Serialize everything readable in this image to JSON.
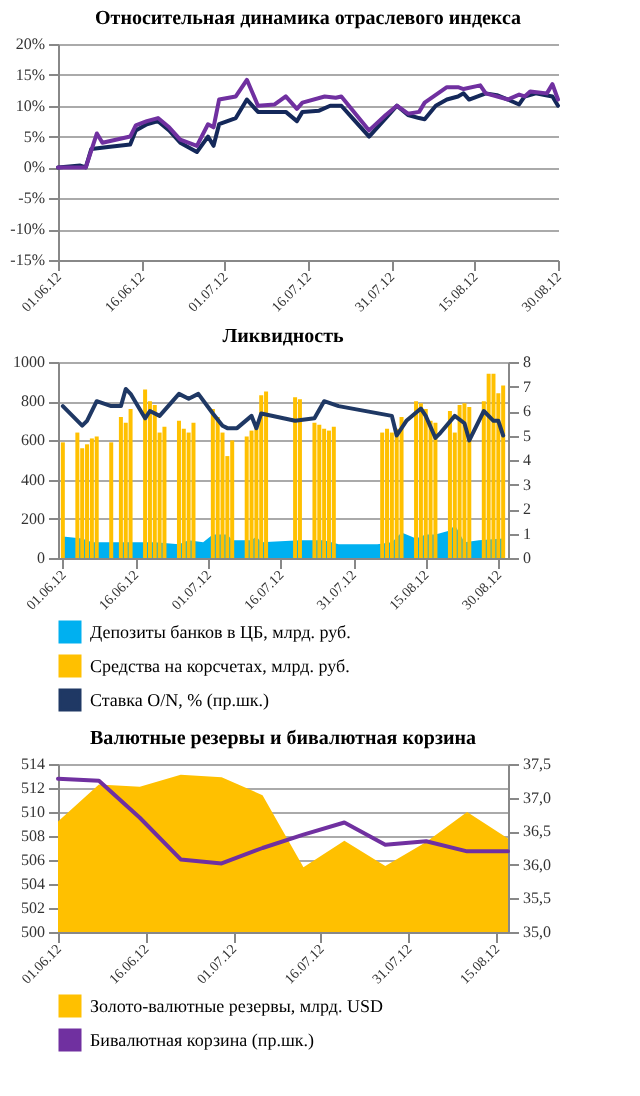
{
  "chart_data": [
    {
      "type": "line",
      "title": "Относительная динамика отраслевого индекса",
      "xlim": [
        "--06-01",
        "--08-30"
      ],
      "xticks": [
        {
          "value": "--06-01",
          "label": "01.06.12"
        },
        {
          "value": "--06-16",
          "label": "16.06.12"
        },
        {
          "value": "--07-01",
          "label": "01.07.12"
        },
        {
          "value": "--07-16",
          "label": "16.07.12"
        },
        {
          "value": "--07-31",
          "label": "31.07.12"
        },
        {
          "value": "--08-15",
          "label": "15.08.12"
        },
        {
          "value": "--08-30",
          "label": "30.08.12"
        }
      ],
      "ylim": [
        -15,
        20
      ],
      "yticks": [
        {
          "value": -15,
          "label": "-15%"
        },
        {
          "value": -10,
          "label": "-10%"
        },
        {
          "value": -5,
          "label": "-5%"
        },
        {
          "value": 0,
          "label": "0%"
        },
        {
          "value": 5,
          "label": "5%"
        },
        {
          "value": 10,
          "label": "10%"
        },
        {
          "value": 15,
          "label": "15%"
        },
        {
          "value": 20,
          "label": "20%"
        }
      ],
      "grid": "y",
      "series": [
        {
          "color": "#14285a",
          "x": [
            "--06-01",
            "--06-05",
            "--06-06",
            "--06-07",
            "--06-10",
            "--06-14",
            "--06-15",
            "--06-17",
            "--06-19",
            "--06-21",
            "--06-23",
            "--06-26",
            "--06-28",
            "--06-29",
            "--06-30",
            "--07-03",
            "--07-05",
            "--07-07",
            "--07-10",
            "--07-12",
            "--07-14",
            "--07-15",
            "--07-18",
            "--07-20",
            "--07-22",
            "--07-24",
            "--07-27",
            "--07-30",
            "--08-01",
            "--08-03",
            "--08-05",
            "--08-06",
            "--08-08",
            "--08-10",
            "--08-12",
            "--08-13",
            "--08-14",
            "--08-17",
            "--08-19",
            "--08-21",
            "--08-23",
            "--08-24",
            "--08-26",
            "--08-29",
            "--08-30"
          ],
          "values": [
            0,
            0.3,
            0,
            3,
            3.3,
            3.7,
            6,
            7,
            7.5,
            6,
            4,
            2.5,
            5,
            3.5,
            7,
            8,
            11,
            9,
            9,
            9,
            7.5,
            9,
            9.2,
            10,
            10,
            8,
            5,
            8,
            10,
            8.5,
            8,
            7.8,
            10,
            11,
            11.5,
            12,
            11,
            12,
            11.7,
            11,
            10.2,
            11.5,
            12,
            11.5,
            10
          ]
        },
        {
          "color": "#7030a0",
          "x": [
            "--06-01",
            "--06-06",
            "--06-08",
            "--06-09",
            "--06-14",
            "--06-15",
            "--06-17",
            "--06-19",
            "--06-21",
            "--06-23",
            "--06-26",
            "--06-28",
            "--06-29",
            "--06-30",
            "--07-03",
            "--07-05",
            "--07-07",
            "--07-10",
            "--07-12",
            "--07-14",
            "--07-15",
            "--07-19",
            "--07-21",
            "--07-22",
            "--07-27",
            "--07-30",
            "--08-01",
            "--08-03",
            "--08-05",
            "--08-06",
            "--08-10",
            "--08-12",
            "--08-13",
            "--08-16",
            "--08-17",
            "--08-21",
            "--08-23",
            "--08-24",
            "--08-25",
            "--08-28",
            "--08-29",
            "--08-30"
          ],
          "values": [
            0,
            0,
            5.5,
            4,
            5,
            6.8,
            7.5,
            8,
            6.5,
            4.5,
            3.5,
            7,
            6.5,
            11,
            11.5,
            14.2,
            10,
            10.2,
            11.5,
            9.5,
            10.5,
            11.5,
            11.3,
            11.5,
            6,
            8.5,
            10,
            8.7,
            9,
            10.5,
            13,
            13,
            12.7,
            13.3,
            12,
            11,
            11.8,
            11.5,
            12.3,
            12,
            13.5,
            11
          ]
        }
      ]
    },
    {
      "type": "bar",
      "title": "Ликвидность",
      "xlim": [
        "--05-31",
        "--09-01"
      ],
      "xticks": [
        {
          "value": "--06-01",
          "label": "01.06.12"
        },
        {
          "value": "--06-16",
          "label": "16.06.12"
        },
        {
          "value": "--07-01",
          "label": "01.07.12"
        },
        {
          "value": "--07-16",
          "label": "16.07.12"
        },
        {
          "value": "--07-31",
          "label": "31.07.12"
        },
        {
          "value": "--08-15",
          "label": "15.08.12"
        },
        {
          "value": "--08-30",
          "label": "30.08.12"
        }
      ],
      "ylim": [
        0,
        1000
      ],
      "yticks": [
        0,
        200,
        400,
        600,
        800,
        1000
      ],
      "y2lim": [
        0,
        8
      ],
      "y2ticks": [
        0,
        1,
        2,
        3,
        4,
        5,
        6,
        7,
        8
      ],
      "grid": "y",
      "legend": "bottom",
      "series": [
        {
          "name": "Депозиты банков в ЦБ, млрд. руб.",
          "type": "area",
          "color": "#00b0f0",
          "x": [
            "--06-01",
            "--06-05",
            "--06-07",
            "--06-11",
            "--06-20",
            "--06-25",
            "--06-27",
            "--06-30",
            "--07-02",
            "--07-05",
            "--07-06",
            "--07-10",
            "--07-11",
            "--07-12",
            "--07-20",
            "--07-25",
            "--07-28",
            "--08-05",
            "--08-08",
            "--08-10",
            "--08-13",
            "--08-15",
            "--08-17",
            "--08-20",
            "--08-21",
            "--08-23",
            "--08-26",
            "--08-31"
          ],
          "values": [
            110,
            100,
            80,
            80,
            80,
            70,
            90,
            80,
            120,
            120,
            90,
            90,
            110,
            80,
            90,
            90,
            70,
            70,
            80,
            130,
            100,
            120,
            120,
            140,
            170,
            80,
            90,
            100
          ]
        },
        {
          "name": "Средства на корсчетах, млрд. руб.",
          "color": "#ffc000",
          "x": [
            "--06-01",
            "--06-04",
            "--06-05",
            "--06-06",
            "--06-07",
            "--06-08",
            "--06-11",
            "--06-13",
            "--06-14",
            "--06-15",
            "--06-18",
            "--06-19",
            "--06-20",
            "--06-21",
            "--06-22",
            "--06-25",
            "--06-26",
            "--06-27",
            "--06-28",
            "--07-02",
            "--07-03",
            "--07-04",
            "--07-05",
            "--07-06",
            "--07-09",
            "--07-10",
            "--07-11",
            "--07-12",
            "--07-13",
            "--07-19",
            "--07-20",
            "--07-23",
            "--07-24",
            "--07-25",
            "--07-26",
            "--07-27",
            "--08-06",
            "--08-07",
            "--08-08",
            "--08-09",
            "--08-10",
            "--08-13",
            "--08-14",
            "--08-15",
            "--08-16",
            "--08-17",
            "--08-20",
            "--08-21",
            "--08-22",
            "--08-23",
            "--08-24",
            "--08-27",
            "--08-28",
            "--08-29",
            "--08-30",
            "--08-31"
          ],
          "values": [
            590,
            640,
            560,
            580,
            610,
            620,
            590,
            720,
            690,
            760,
            860,
            800,
            780,
            640,
            670,
            700,
            660,
            640,
            690,
            760,
            720,
            640,
            520,
            600,
            620,
            650,
            680,
            830,
            850,
            820,
            810,
            690,
            680,
            660,
            650,
            670,
            640,
            660,
            640,
            660,
            720,
            800,
            790,
            760,
            700,
            690,
            750,
            640,
            780,
            790,
            770,
            800,
            940,
            940,
            840,
            880
          ]
        },
        {
          "name": "Ставка O/N, % (пр.шк.)",
          "type": "line",
          "axis": "y2",
          "color": "#1f3864",
          "x": [
            "--06-01",
            "--06-05",
            "--06-06",
            "--06-08",
            "--06-11",
            "--06-13",
            "--06-14",
            "--06-15",
            "--06-18",
            "--06-19",
            "--06-21",
            "--06-25",
            "--06-27",
            "--06-29",
            "--07-02",
            "--07-04",
            "--07-05",
            "--07-07",
            "--07-10",
            "--07-11",
            "--07-12",
            "--07-19",
            "--07-23",
            "--07-25",
            "--07-28",
            "--08-08",
            "--08-09",
            "--08-11",
            "--08-14",
            "--08-15",
            "--08-17",
            "--08-18",
            "--08-21",
            "--08-23",
            "--08-24",
            "--08-27",
            "--08-29",
            "--08-30",
            "--08-31"
          ],
          "values": [
            6.2,
            5.4,
            5.6,
            6.4,
            6.2,
            6.2,
            6.9,
            6.7,
            5.7,
            6,
            5.8,
            6.7,
            6.5,
            6.7,
            5.9,
            5.4,
            5.3,
            5.3,
            5.8,
            5.3,
            5.9,
            5.6,
            5.7,
            6.4,
            6.2,
            5.8,
            5,
            5.6,
            6.1,
            5.8,
            4.9,
            5.1,
            5.8,
            5.5,
            4.8,
            6,
            5.6,
            5.6,
            5
          ]
        }
      ]
    },
    {
      "type": "area",
      "title": "Валютные резервы и бивалютная корзина",
      "xlim": [
        "--06-01",
        "--08-17"
      ],
      "xticks": [
        {
          "value": "--06-01",
          "label": "01.06.12"
        },
        {
          "value": "--06-16",
          "label": "16.06.12"
        },
        {
          "value": "--07-01",
          "label": "01.07.12"
        },
        {
          "value": "--07-16",
          "label": "16.07.12"
        },
        {
          "value": "--07-31",
          "label": "31.07.12"
        },
        {
          "value": "--08-15",
          "label": "15.08.12"
        }
      ],
      "ylim": [
        500,
        514
      ],
      "yticks": [
        500,
        502,
        504,
        506,
        508,
        510,
        512,
        514
      ],
      "y2lim": [
        35,
        37.5
      ],
      "y2ticks": [
        {
          "value": 35,
          "label": "35,0"
        },
        {
          "value": 35.5,
          "label": "35,5"
        },
        {
          "value": 36,
          "label": "36,0"
        },
        {
          "value": 36.5,
          "label": "36,5"
        },
        {
          "value": 37,
          "label": "37,0"
        },
        {
          "value": 37.5,
          "label": "37,5"
        }
      ],
      "grid": "y",
      "legend": "bottom",
      "series": [
        {
          "name": "Золото-валютные резервы, млрд. USD",
          "color": "#ffc000",
          "x": [
            "--06-01",
            "--06-08",
            "--06-15",
            "--06-22",
            "--06-29",
            "--07-06",
            "--07-13",
            "--07-20",
            "--07-27",
            "--08-03",
            "--08-10",
            "--08-17"
          ],
          "values": [
            509.2,
            512.3,
            512.1,
            513.1,
            512.9,
            511.4,
            505.4,
            507.6,
            505.5,
            507.5,
            510,
            507.8
          ]
        },
        {
          "name": "Бивалютная корзина (пр.шк.)",
          "type": "line",
          "axis": "y2",
          "color": "#7030a0",
          "x": [
            "--06-01",
            "--06-08",
            "--06-15",
            "--06-22",
            "--06-29",
            "--07-06",
            "--07-13",
            "--07-20",
            "--07-27",
            "--08-03",
            "--08-10",
            "--08-17"
          ],
          "values": [
            37.28,
            37.25,
            36.7,
            36.08,
            36.02,
            36.25,
            36.45,
            36.63,
            36.3,
            36.35,
            36.2,
            36.2
          ]
        }
      ]
    }
  ]
}
